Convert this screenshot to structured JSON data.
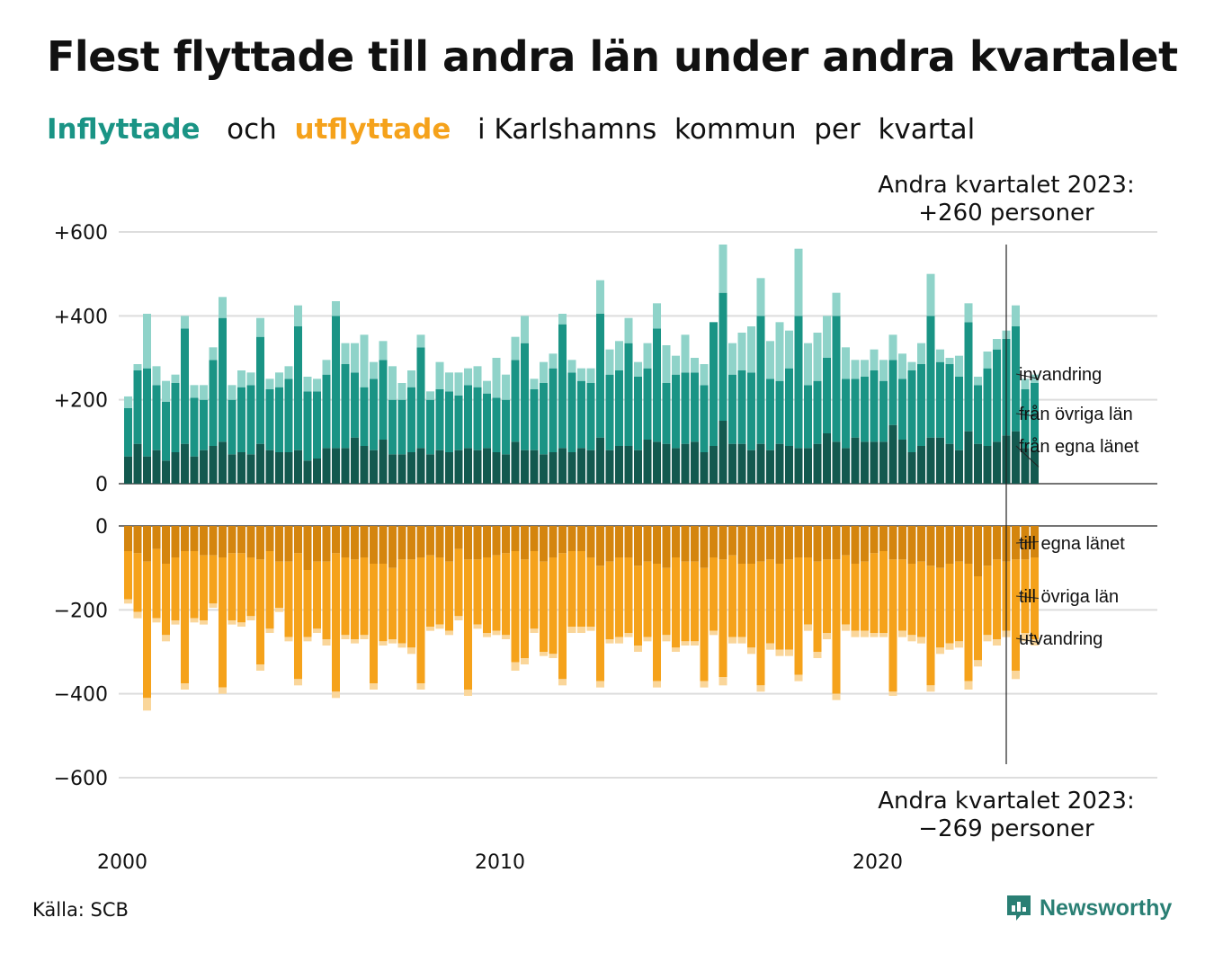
{
  "title": "Flest flyttade till andra län under andra kvartalet",
  "subtitle": {
    "in_word": "Inflyttade",
    "and_word": "och",
    "out_word": "utflyttade",
    "rest": "i Karlshamns  kommun  per  kvartal"
  },
  "source": "Källa: SCB",
  "brand": {
    "name": "Newsworthy",
    "icon": "newsworthy-logo-icon"
  },
  "colors": {
    "in_own": "#13594f",
    "in_other": "#1a9485",
    "in_immigration": "#8fd3c9",
    "out_own": "#d4850e",
    "out_other": "#f5a21b",
    "out_emigration": "#fad69a",
    "grid": "#dddddd",
    "title_in": "#1a9485",
    "title_out": "#f5a21b",
    "brand": "#2a7f74"
  },
  "annotations": {
    "top_line1": "Andra kvartalet 2023:",
    "top_line2": "+260 personer",
    "bottom_line1": "Andra kvartalet 2023:",
    "bottom_line2": "−269 personer"
  },
  "chart_data": {
    "type": "bar",
    "stacked": true,
    "x_label_every": "year",
    "x_ticks": [
      "2000",
      "2010",
      "2020"
    ],
    "y_ticks_top": [
      "+600",
      "+400",
      "+200",
      "0"
    ],
    "y_ticks_bottom": [
      "0",
      "−200",
      "−400",
      "−600"
    ],
    "ylim_top": [
      0,
      600
    ],
    "ylim_bottom": [
      -600,
      0
    ],
    "grid": true,
    "series_top": [
      {
        "name": "från egna länet",
        "values": [
          65,
          95,
          65,
          80,
          55,
          75,
          95,
          65,
          80,
          90,
          100,
          70,
          75,
          70,
          95,
          80,
          75,
          75,
          80,
          55,
          60,
          85,
          85,
          85,
          110,
          90,
          80,
          105,
          70,
          70,
          75,
          85,
          70,
          80,
          75,
          80,
          85,
          80,
          85,
          75,
          70,
          100,
          80,
          80,
          70,
          75,
          85,
          75,
          85,
          80,
          110,
          80,
          90,
          90,
          80,
          105,
          100,
          95,
          85,
          95,
          100,
          75,
          90,
          150,
          95,
          95,
          80,
          95,
          80,
          95,
          90,
          85,
          85,
          95,
          120,
          100,
          85,
          110,
          100,
          100,
          100,
          140,
          105,
          75,
          90,
          110,
          110,
          95,
          80,
          125,
          95,
          90,
          100,
          115,
          125,
          85,
          80
        ]
      },
      {
        "name": "från övriga län",
        "values": [
          115,
          175,
          210,
          155,
          140,
          165,
          275,
          140,
          120,
          205,
          295,
          130,
          155,
          165,
          255,
          145,
          155,
          175,
          295,
          165,
          160,
          175,
          315,
          200,
          155,
          140,
          170,
          190,
          130,
          130,
          155,
          240,
          130,
          145,
          145,
          130,
          150,
          150,
          130,
          130,
          130,
          195,
          255,
          145,
          170,
          200,
          295,
          190,
          160,
          160,
          295,
          180,
          180,
          245,
          175,
          170,
          270,
          145,
          175,
          170,
          165,
          160,
          295,
          305,
          165,
          175,
          185,
          305,
          170,
          150,
          185,
          315,
          150,
          150,
          180,
          300,
          165,
          140,
          155,
          170,
          145,
          155,
          145,
          195,
          195,
          290,
          180,
          190,
          175,
          260,
          140,
          185,
          220,
          230,
          250,
          140,
          160
        ]
      },
      {
        "name": "invandring",
        "values": [
          28,
          15,
          130,
          45,
          50,
          20,
          30,
          30,
          35,
          30,
          50,
          35,
          40,
          30,
          45,
          25,
          35,
          30,
          50,
          35,
          30,
          35,
          35,
          50,
          70,
          125,
          40,
          45,
          80,
          40,
          40,
          30,
          20,
          65,
          45,
          55,
          40,
          50,
          30,
          95,
          60,
          55,
          65,
          25,
          50,
          35,
          25,
          30,
          30,
          35,
          80,
          60,
          70,
          60,
          35,
          60,
          60,
          90,
          45,
          90,
          35,
          50,
          0,
          115,
          75,
          90,
          110,
          90,
          90,
          140,
          90,
          160,
          100,
          115,
          100,
          55,
          75,
          45,
          40,
          50,
          50,
          60,
          60,
          20,
          50,
          100,
          30,
          15,
          50,
          45,
          20,
          40,
          25,
          20,
          50,
          25,
          20
        ]
      }
    ],
    "series_bottom": [
      {
        "name": "till egna länet",
        "values": [
          -60,
          -65,
          -85,
          -55,
          -90,
          -75,
          -60,
          -60,
          -70,
          -70,
          -75,
          -65,
          -65,
          -75,
          -80,
          -60,
          -85,
          -85,
          -65,
          -105,
          -85,
          -85,
          -65,
          -75,
          -80,
          -75,
          -90,
          -90,
          -100,
          -80,
          -80,
          -75,
          -70,
          -75,
          -85,
          -55,
          -80,
          -80,
          -75,
          -70,
          -65,
          -60,
          -80,
          -60,
          -85,
          -75,
          -65,
          -60,
          -60,
          -75,
          -95,
          -85,
          -75,
          -75,
          -95,
          -85,
          -90,
          -100,
          -75,
          -85,
          -85,
          -100,
          -75,
          -80,
          -70,
          -90,
          -90,
          -85,
          -80,
          -90,
          -80,
          -75,
          -75,
          -85,
          -80,
          -80,
          -70,
          -90,
          -85,
          -65,
          -60,
          -80,
          -80,
          -90,
          -85,
          -95,
          -100,
          -90,
          -85,
          -90,
          -120,
          -95,
          -80,
          -85,
          -80,
          -80,
          -75
        ]
      },
      {
        "name": "till övriga län",
        "values": [
          -115,
          -140,
          -325,
          -165,
          -170,
          -150,
          -315,
          -160,
          -155,
          -115,
          -310,
          -160,
          -165,
          -140,
          -250,
          -185,
          -110,
          -180,
          -300,
          -160,
          -160,
          -185,
          -330,
          -185,
          -190,
          -185,
          -285,
          -185,
          -170,
          -200,
          -210,
          -300,
          -170,
          -160,
          -165,
          -160,
          -310,
          -155,
          -180,
          -180,
          -195,
          -265,
          -235,
          -185,
          -215,
          -230,
          -300,
          -180,
          -180,
          -165,
          -275,
          -185,
          -190,
          -180,
          -190,
          -180,
          -280,
          -160,
          -215,
          -190,
          -190,
          -270,
          -175,
          -280,
          -195,
          -175,
          -200,
          -295,
          -200,
          -205,
          -215,
          -280,
          -160,
          -215,
          -175,
          -320,
          -165,
          -160,
          -165,
          -190,
          -195,
          -315,
          -170,
          -170,
          -180,
          -285,
          -190,
          -190,
          -190,
          -280,
          -200,
          -165,
          -190,
          -165,
          -265,
          -175,
          -195
        ]
      },
      {
        "name": "utvandring",
        "values": [
          -10,
          -15,
          -30,
          -10,
          -15,
          -10,
          -15,
          -10,
          -10,
          -10,
          -15,
          -10,
          -10,
          -10,
          -15,
          -10,
          -10,
          -10,
          -15,
          -10,
          -10,
          -15,
          -15,
          -10,
          -10,
          -10,
          -15,
          -10,
          -10,
          -10,
          -15,
          -15,
          -10,
          -10,
          -10,
          -10,
          -15,
          -10,
          -10,
          -10,
          -10,
          -20,
          -15,
          -10,
          -10,
          -10,
          -15,
          -15,
          -15,
          -10,
          -15,
          -10,
          -15,
          -10,
          -15,
          -10,
          -15,
          -15,
          -10,
          -10,
          -10,
          -15,
          -10,
          -20,
          -15,
          -15,
          -15,
          -15,
          -15,
          -15,
          -15,
          -15,
          -15,
          -15,
          -15,
          -15,
          -15,
          -15,
          -15,
          -10,
          -10,
          -10,
          -15,
          -15,
          -15,
          -15,
          -15,
          -15,
          -15,
          -20,
          -15,
          -15,
          -15,
          -15,
          -20,
          -20,
          -15
        ]
      }
    ]
  }
}
